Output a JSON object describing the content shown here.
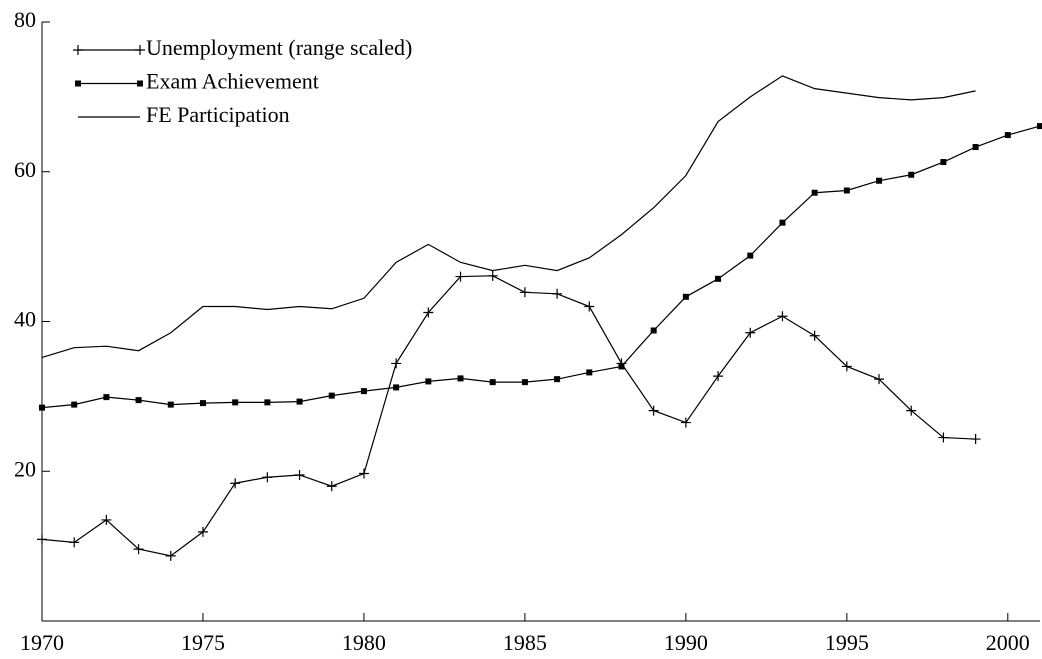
{
  "chart_data": {
    "type": "line",
    "xlim": [
      1970,
      2001
    ],
    "xticks": [
      1970,
      1975,
      1980,
      1985,
      1990,
      1995,
      2000
    ],
    "ylim": [
      0,
      80
    ],
    "yticks": [
      20,
      40,
      60,
      80
    ],
    "legend": "top-left",
    "series": [
      {
        "name": "Unemployment (range scaled)",
        "color": "#000000",
        "marker": "plus",
        "x": [
          1970,
          1971,
          1972,
          1973,
          1974,
          1975,
          1976,
          1977,
          1978,
          1979,
          1980,
          1981,
          1982,
          1983,
          1984,
          1985,
          1986,
          1987,
          1988,
          1989,
          1990,
          1991,
          1992,
          1993,
          1994,
          1995,
          1996,
          1997,
          1998,
          1999
        ],
        "values": [
          10.9,
          10.5,
          13.5,
          9.6,
          8.7,
          11.9,
          18.4,
          19.2,
          19.5,
          18.0,
          19.7,
          34.4,
          41.2,
          46.0,
          46.1,
          43.9,
          43.7,
          42.0,
          34.4,
          28.1,
          26.5,
          32.7,
          38.5,
          40.7,
          38.1,
          34.0,
          32.3,
          28.1,
          24.5,
          24.3
        ]
      },
      {
        "name": "Exam Achievement",
        "color": "#000000",
        "marker": "square",
        "x": [
          1970,
          1971,
          1972,
          1973,
          1974,
          1975,
          1976,
          1977,
          1978,
          1979,
          1980,
          1981,
          1982,
          1983,
          1984,
          1985,
          1986,
          1987,
          1988,
          1989,
          1990,
          1991,
          1992,
          1993,
          1994,
          1995,
          1996,
          1997,
          1998,
          1999,
          2000,
          2001
        ],
        "values": [
          28.5,
          28.9,
          29.9,
          29.5,
          28.9,
          29.1,
          29.2,
          29.2,
          29.3,
          30.1,
          30.7,
          31.2,
          32.0,
          32.4,
          31.9,
          31.9,
          32.3,
          33.2,
          34.0,
          38.8,
          43.3,
          45.7,
          48.8,
          53.2,
          57.2,
          57.5,
          58.8,
          59.6,
          61.3,
          63.3,
          64.9,
          66.1
        ]
      },
      {
        "name": "FE Participation",
        "color": "#000000",
        "marker": "none",
        "x": [
          1970,
          1971,
          1972,
          1973,
          1974,
          1975,
          1976,
          1977,
          1978,
          1979,
          1980,
          1981,
          1982,
          1983,
          1984,
          1985,
          1986,
          1987,
          1988,
          1989,
          1990,
          1991,
          1992,
          1993,
          1994,
          1995,
          1996,
          1997,
          1998,
          1999
        ],
        "values": [
          35.2,
          36.5,
          36.7,
          36.1,
          38.5,
          42.0,
          42.0,
          41.6,
          42.0,
          41.7,
          43.1,
          47.9,
          50.3,
          47.9,
          46.8,
          47.5,
          46.8,
          48.5,
          51.6,
          55.2,
          59.5,
          66.7,
          70.0,
          72.8,
          71.1,
          70.5,
          69.9,
          69.6,
          69.9,
          70.8
        ]
      }
    ]
  }
}
